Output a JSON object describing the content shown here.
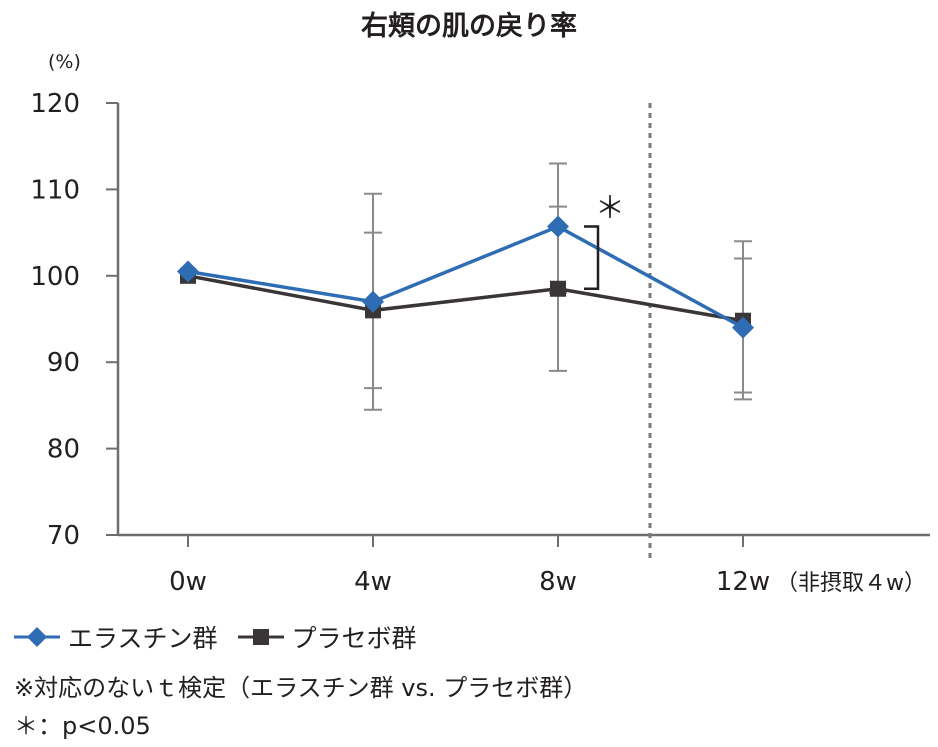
{
  "title": "右頬の肌の戻り率",
  "unit_label": "(%)",
  "x_note": "（非摂取４w）",
  "significance_mark": "＊",
  "legend": [
    {
      "label": "エラスチン群",
      "color": "#2e6db4",
      "marker": "diamond"
    },
    {
      "label": "プラセボ群",
      "color": "#3a3537",
      "marker": "square"
    }
  ],
  "footnotes": [
    "※対応のないｔ検定（エラスチン群 vs. プラセボ群）",
    "＊：p<0.05"
  ],
  "chart_data": {
    "type": "line",
    "title": "右頬の肌の戻り率",
    "ylabel": "(%)",
    "xlabel": "",
    "categories": [
      "0w",
      "4w",
      "8w",
      "12w"
    ],
    "ylim": [
      70,
      120
    ],
    "yticks": [
      70,
      80,
      90,
      100,
      110,
      120
    ],
    "series": [
      {
        "name": "エラスチン群",
        "color": "#2e6db4",
        "marker": "diamond",
        "values": [
          100.5,
          97.0,
          105.7,
          94.0
        ],
        "err_low": [
          null,
          87.0,
          98.0,
          86.5
        ],
        "err_high": [
          null,
          105.0,
          113.0,
          102.0
        ]
      },
      {
        "name": "プラセボ群",
        "color": "#3a3537",
        "marker": "square",
        "values": [
          100.0,
          96.0,
          98.5,
          94.8
        ],
        "err_low": [
          null,
          84.5,
          89.0,
          85.7
        ],
        "err_high": [
          null,
          109.5,
          108.0,
          104.0
        ]
      }
    ],
    "divider_between": [
      "8w",
      "12w"
    ],
    "significance": {
      "category": "8w",
      "mark": "＊",
      "p": "p<0.05"
    },
    "grid": false,
    "legend_position": "bottom-left"
  }
}
